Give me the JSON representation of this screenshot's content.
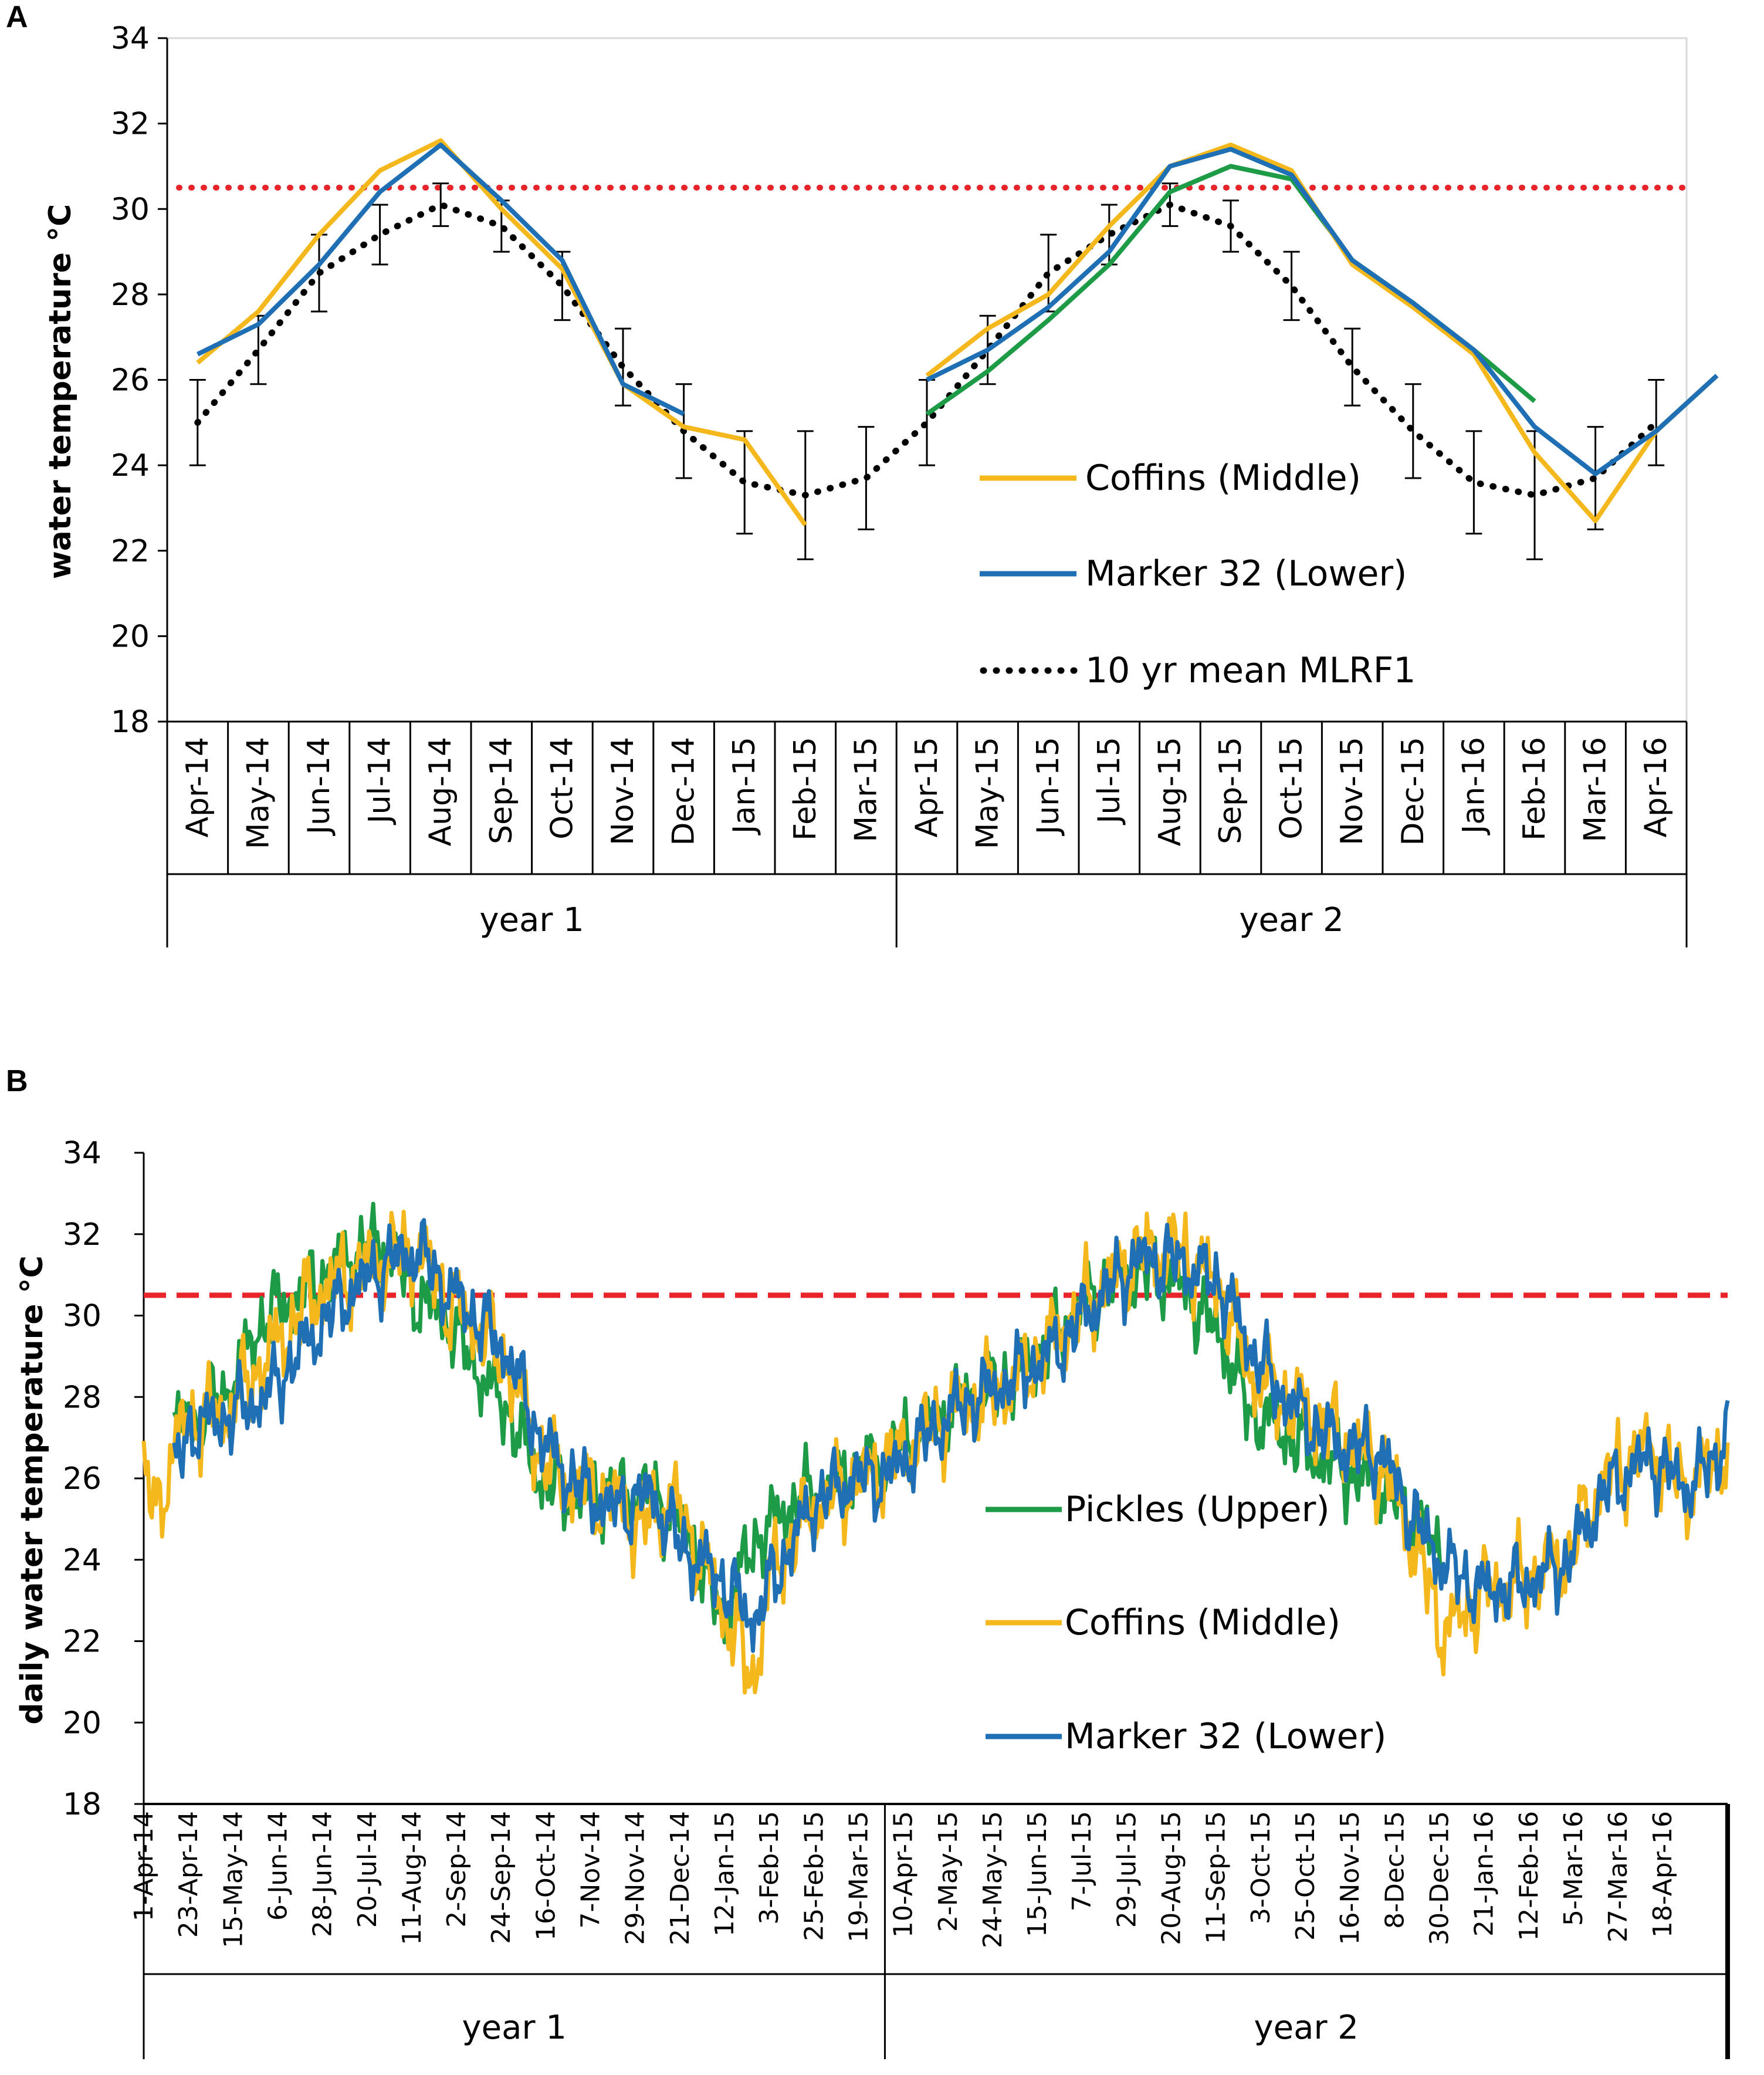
{
  "chart_data": [
    {
      "panel": "A",
      "type": "line",
      "ylabel": "water temperature °C",
      "ylim": [
        18,
        34
      ],
      "yticks": [
        "18",
        "20",
        "22",
        "24",
        "26",
        "28",
        "30",
        "32",
        "34"
      ],
      "categories": [
        "Apr-14",
        "May-14",
        "Jun-14",
        "Jul-14",
        "Aug-14",
        "Sep-14",
        "Oct-14",
        "Nov-14",
        "Dec-14",
        "Jan-15",
        "Feb-15",
        "Mar-15",
        "Apr-15",
        "May-15",
        "Jun-15",
        "Jul-15",
        "Aug-15",
        "Sep-15",
        "Oct-15",
        "Nov-15",
        "Dec-15",
        "Jan-16",
        "Feb-16",
        "Mar-16",
        "Apr-16"
      ],
      "groups": [
        {
          "label": "year 1"
        },
        {
          "label": "year 2"
        }
      ],
      "threshold": 30.5,
      "series": [
        {
          "name": "Coffins (Middle)",
          "color": "#F5B81C",
          "in_legend": true,
          "segments": [
            [
              0,
              [
                26.4,
                27.6,
                29.4,
                30.9,
                31.6,
                30.0,
                28.6,
                25.9,
                24.9,
                24.6,
                22.6
              ]
            ],
            [
              12,
              [
                26.1,
                27.2,
                28.0,
                29.6,
                31.0,
                31.5,
                30.9,
                28.7,
                27.7,
                26.6,
                24.3,
                22.7,
                24.8,
                26.1
              ]
            ]
          ]
        },
        {
          "name": "Marker 32 (Lower)",
          "color": "#1F6FB5",
          "in_legend": true,
          "segments": [
            [
              0,
              [
                26.6,
                27.3,
                28.7,
                30.4,
                31.5,
                30.2,
                28.8,
                25.9,
                25.2
              ]
            ],
            [
              12,
              [
                26.0,
                26.7,
                27.7,
                29.0,
                31.0,
                31.4,
                30.8,
                28.8,
                27.8,
                26.7,
                24.9,
                23.8,
                24.8,
                26.1
              ]
            ]
          ]
        },
        {
          "name": "Pickles (Upper)",
          "color": "#1E9B46",
          "in_legend": false,
          "segments": [
            [
              12,
              [
                25.2,
                26.2,
                27.4,
                28.7,
                30.4,
                31.0,
                30.7,
                28.8,
                27.8,
                26.7,
                25.5
              ]
            ]
          ]
        },
        {
          "name": "10 yr mean MLRF1",
          "color": "#000000",
          "in_legend": true,
          "values": [
            25.0,
            26.7,
            28.5,
            29.4,
            30.1,
            29.6,
            28.2,
            26.3,
            24.8,
            23.6,
            23.3,
            23.7,
            25.0,
            26.7,
            28.5,
            29.4,
            30.1,
            29.6,
            28.2,
            26.3,
            24.8,
            23.6,
            23.3,
            23.7,
            25.0
          ],
          "errors": [
            1.0,
            0.8,
            0.9,
            0.7,
            0.5,
            0.6,
            0.8,
            0.9,
            1.1,
            1.2,
            1.5,
            1.2,
            1.0,
            0.8,
            0.9,
            0.7,
            0.5,
            0.6,
            0.8,
            0.9,
            1.1,
            1.2,
            1.5,
            1.2,
            1.0
          ]
        }
      ]
    },
    {
      "panel": "B",
      "type": "line",
      "ylabel": "daily water temperature °C",
      "ylim": [
        18,
        34
      ],
      "yticks": [
        "18",
        "20",
        "22",
        "24",
        "26",
        "28",
        "30",
        "32",
        "34"
      ],
      "x_labels": [
        "1-Apr-14",
        "23-Apr-14",
        "15-May-14",
        "6-Jun-14",
        "28-Jun-14",
        "20-Jul-14",
        "11-Aug-14",
        "2-Sep-14",
        "24-Sep-14",
        "16-Oct-14",
        "7-Nov-14",
        "29-Nov-14",
        "21-Dec-14",
        "12-Jan-15",
        "3-Feb-15",
        "25-Feb-15",
        "19-Mar-15",
        "10-Apr-15",
        "2-May-15",
        "24-May-15",
        "15-Jun-15",
        "7-Jul-15",
        "29-Jul-15",
        "20-Aug-15",
        "11-Sep-15",
        "3-Oct-15",
        "25-Oct-15",
        "16-Nov-15",
        "8-Dec-15",
        "30-Dec-15",
        "21-Jan-16",
        "12-Feb-16",
        "5-Mar-16",
        "27-Mar-16",
        "18-Apr-16"
      ],
      "label_step_days": 22,
      "total_days": 780,
      "groups": [
        {
          "label": "year 1",
          "end_day": 365
        },
        {
          "label": "year 2",
          "end_day": 780
        }
      ],
      "threshold": 30.5,
      "series": [
        {
          "name": "Pickles (Upper)",
          "color": "#1E9B46",
          "start_day": 15,
          "end_day": 640,
          "anchors": [
            [
              15,
              27.2
            ],
            [
              40,
              28.0
            ],
            [
              60,
              30.0
            ],
            [
              80,
              30.6
            ],
            [
              100,
              31.4
            ],
            [
              118,
              31.8
            ],
            [
              135,
              30.4
            ],
            [
              150,
              29.9
            ],
            [
              165,
              28.6
            ],
            [
              180,
              27.6
            ],
            [
              195,
              26.0
            ],
            [
              210,
              25.6
            ],
            [
              230,
              25.6
            ],
            [
              250,
              25.6
            ],
            [
              270,
              24.5
            ],
            [
              285,
              22.5
            ],
            [
              300,
              24.4
            ],
            [
              320,
              25.4
            ],
            [
              340,
              25.9
            ],
            [
              365,
              26.5
            ],
            [
              400,
              27.8
            ],
            [
              430,
              28.5
            ],
            [
              450,
              29.5
            ],
            [
              470,
              30.6
            ],
            [
              490,
              31.1
            ],
            [
              510,
              30.8
            ],
            [
              530,
              29.5
            ],
            [
              545,
              27.6
            ],
            [
              560,
              27.2
            ],
            [
              575,
              26.6
            ],
            [
              590,
              26.2
            ],
            [
              610,
              25.8
            ],
            [
              630,
              24.8
            ],
            [
              640,
              24.0
            ]
          ],
          "noise": [
            0.6,
            0.45,
            0.35
          ]
        },
        {
          "name": "Coffins (Middle)",
          "color": "#F5B81C",
          "start_day": 0,
          "end_day": 780,
          "anchors": [
            [
              0,
              26.0
            ],
            [
              6,
              25.2
            ],
            [
              20,
              27.4
            ],
            [
              40,
              27.6
            ],
            [
              60,
              28.9
            ],
            [
              80,
              30.3
            ],
            [
              100,
              31.0
            ],
            [
              120,
              31.4
            ],
            [
              135,
              31.6
            ],
            [
              150,
              30.3
            ],
            [
              165,
              29.7
            ],
            [
              180,
              28.7
            ],
            [
              195,
              26.6
            ],
            [
              210,
              25.8
            ],
            [
              230,
              25.5
            ],
            [
              245,
              24.8
            ],
            [
              260,
              25.5
            ],
            [
              275,
              24.0
            ],
            [
              290,
              22.3
            ],
            [
              300,
              21.0
            ],
            [
              310,
              23.8
            ],
            [
              330,
              25.3
            ],
            [
              350,
              25.9
            ],
            [
              365,
              26.3
            ],
            [
              400,
              27.7
            ],
            [
              430,
              28.4
            ],
            [
              450,
              29.5
            ],
            [
              470,
              30.6
            ],
            [
              490,
              31.5
            ],
            [
              510,
              31.6
            ],
            [
              530,
              30.7
            ],
            [
              545,
              28.6
            ],
            [
              560,
              28.0
            ],
            [
              575,
              27.5
            ],
            [
              590,
              27.0
            ],
            [
              610,
              26.3
            ],
            [
              625,
              24.5
            ],
            [
              640,
              22.2
            ],
            [
              660,
              23.2
            ],
            [
              680,
              23.5
            ],
            [
              700,
              24.0
            ],
            [
              720,
              26.0
            ],
            [
              740,
              26.7
            ],
            [
              760,
              25.7
            ],
            [
              775,
              26.5
            ],
            [
              780,
              27.0
            ]
          ],
          "noise": [
            0.7,
            0.5,
            0.45
          ]
        },
        {
          "name": "Marker 32 (Lower)",
          "color": "#1F6FB5",
          "start_day": 15,
          "end_day": 780,
          "anchors": [
            [
              15,
              26.0
            ],
            [
              22,
              27.2
            ],
            [
              40,
              27.5
            ],
            [
              60,
              28.0
            ],
            [
              80,
              29.3
            ],
            [
              100,
              30.5
            ],
            [
              120,
              31.3
            ],
            [
              135,
              31.6
            ],
            [
              150,
              30.6
            ],
            [
              165,
              29.9
            ],
            [
              180,
              29.0
            ],
            [
              195,
              27.0
            ],
            [
              210,
              26.0
            ],
            [
              230,
              25.2
            ],
            [
              250,
              25.6
            ],
            [
              265,
              24.3
            ],
            [
              285,
              23.5
            ],
            [
              300,
              22.5
            ],
            [
              310,
              23.5
            ],
            [
              330,
              25.4
            ],
            [
              350,
              26.0
            ],
            [
              365,
              26.0
            ],
            [
              400,
              27.7
            ],
            [
              430,
              28.5
            ],
            [
              450,
              29.2
            ],
            [
              470,
              30.4
            ],
            [
              490,
              31.4
            ],
            [
              510,
              31.3
            ],
            [
              530,
              30.8
            ],
            [
              545,
              29.2
            ],
            [
              560,
              28.1
            ],
            [
              575,
              27.3
            ],
            [
              590,
              26.8
            ],
            [
              610,
              26.6
            ],
            [
              625,
              25.0
            ],
            [
              640,
              23.9
            ],
            [
              660,
              23.2
            ],
            [
              680,
              23.4
            ],
            [
              700,
              23.9
            ],
            [
              720,
              25.7
            ],
            [
              740,
              26.5
            ],
            [
              760,
              25.8
            ],
            [
              775,
              26.5
            ],
            [
              780,
              27.5
            ]
          ],
          "noise": [
            0.6,
            0.4,
            0.35
          ]
        }
      ]
    }
  ],
  "panelA": {
    "letter": "A",
    "legend": [
      "Coffins (Middle)",
      "Marker 32 (Lower)",
      "10 yr mean MLRF1"
    ]
  },
  "panelB": {
    "letter": "B",
    "legend": [
      "Pickles (Upper)",
      "Coffins (Middle)",
      "Marker 32 (Lower)"
    ]
  }
}
